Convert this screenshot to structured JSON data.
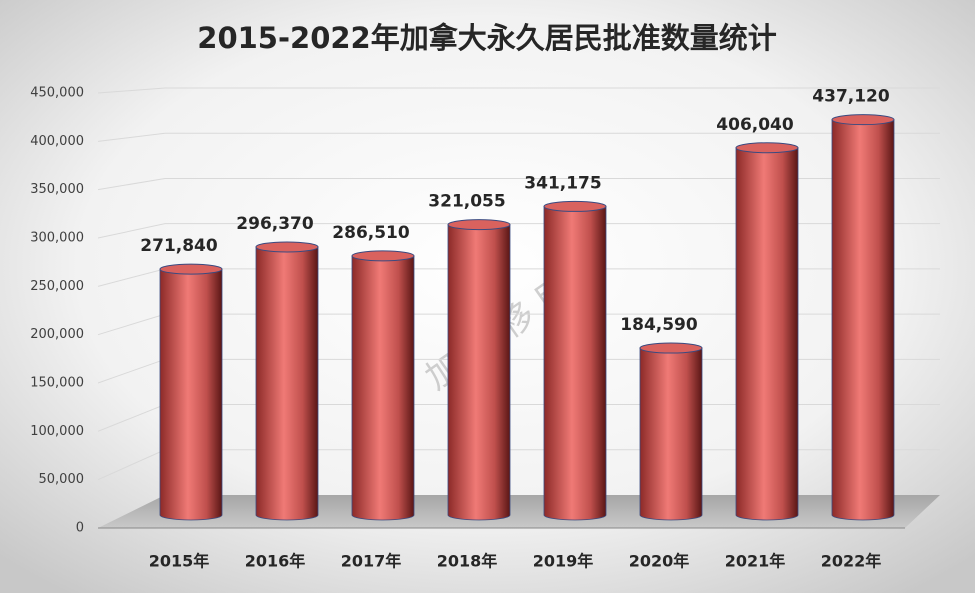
{
  "chart_data": {
    "type": "bar",
    "title": "2015-2022年加拿大永久居民批准数量统计",
    "watermark": "加 美 移 民",
    "categories": [
      "2015年",
      "2016年",
      "2017年",
      "2018年",
      "2019年",
      "2020年",
      "2021年",
      "2022年"
    ],
    "values": [
      271840,
      296370,
      286510,
      321055,
      341175,
      184590,
      406040,
      437120
    ],
    "value_labels": [
      "271,840",
      "296,370",
      "286,510",
      "321,055",
      "341,175",
      "184,590",
      "406,040",
      "437,120"
    ],
    "color": "#c0504d",
    "ylim": [
      0,
      450000
    ],
    "yticks": [
      0,
      {
        "value": 50000,
        "label": "50,000"
      },
      {
        "value": 100000,
        "label": "100,000"
      },
      {
        "value": 150000,
        "label": "150,000"
      },
      {
        "value": 200000,
        "label": "200,000"
      },
      {
        "value": 250000,
        "label": "250,000"
      },
      {
        "value": 300000,
        "label": "300,000"
      },
      {
        "value": 350000,
        "label": "350,000"
      },
      {
        "value": 400000,
        "label": "400,000"
      },
      {
        "value": 450000,
        "label": "450,000"
      }
    ],
    "grid": true
  }
}
